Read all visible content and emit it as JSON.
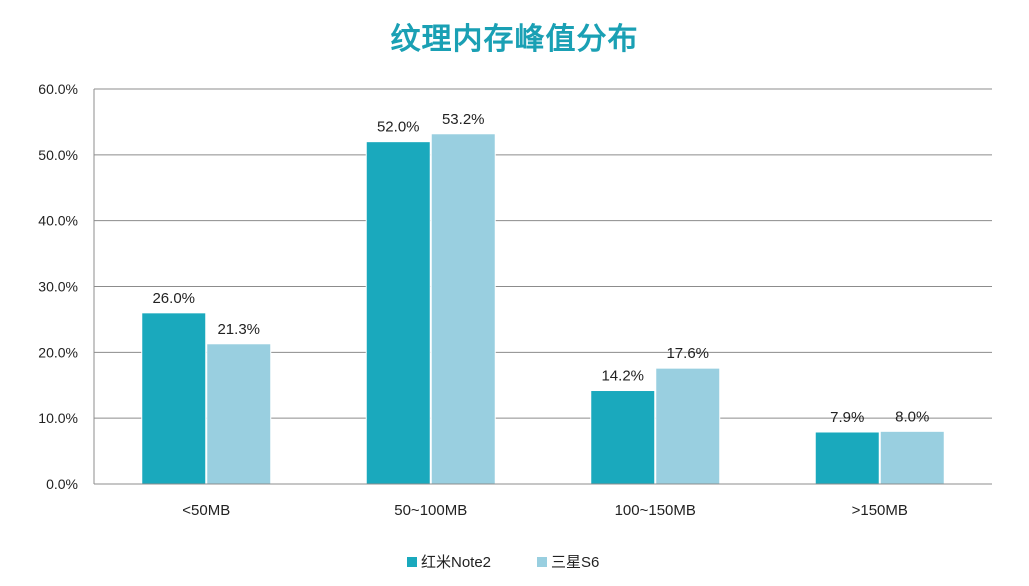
{
  "chart_data": {
    "type": "bar",
    "title": "纹理内存峰值分布",
    "categories": [
      "<50MB",
      "50~100MB",
      "100~150MB",
      ">150MB"
    ],
    "series": [
      {
        "name": "红米Note2",
        "color": "#1aa9bd",
        "values": [
          26.0,
          52.0,
          14.2,
          7.9
        ],
        "labels": [
          "26.0%",
          "52.0%",
          "14.2%",
          "7.9%"
        ]
      },
      {
        "name": "三星S6",
        "color": "#99cfe0",
        "values": [
          21.3,
          53.2,
          17.6,
          8.0
        ],
        "labels": [
          "21.3%",
          "53.2%",
          "17.6%",
          "8.0%"
        ]
      }
    ],
    "ylim": [
      0,
      60
    ],
    "yticks": [
      0,
      10,
      20,
      30,
      40,
      50,
      60
    ],
    "ytick_labels": [
      "0.0%",
      "10.0%",
      "20.0%",
      "30.0%",
      "40.0%",
      "50.0%",
      "60.0%"
    ],
    "grid": true,
    "legend": "bottom",
    "xlabel": "",
    "ylabel": ""
  }
}
